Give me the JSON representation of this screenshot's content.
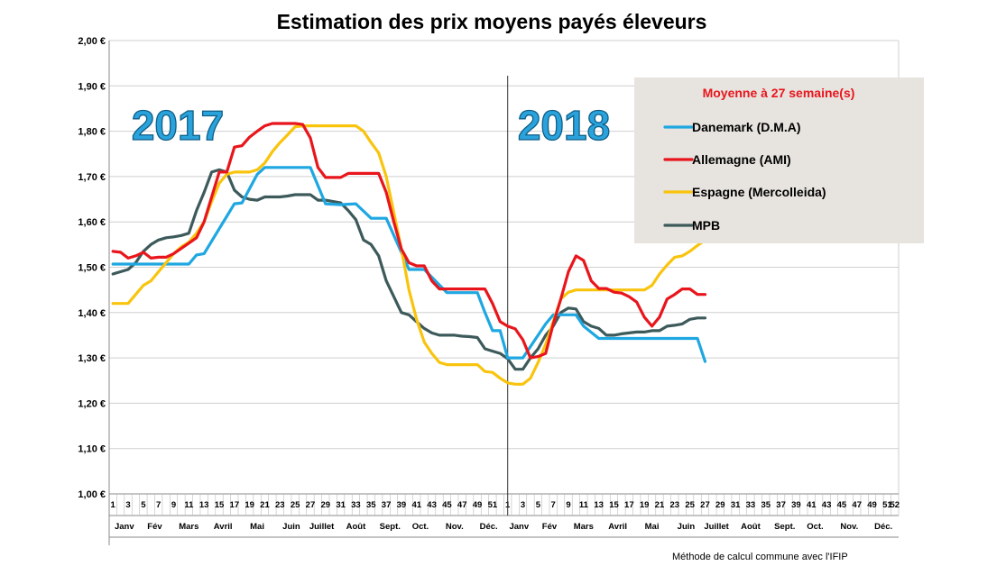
{
  "chart_data": {
    "type": "line",
    "title": "Estimation des prix moyens payés éleveurs",
    "ylim": [
      1.0,
      2.0
    ],
    "y_tick_labels": [
      "1,00 €",
      "1,10 €",
      "1,20 €",
      "1,30 €",
      "1,40 €",
      "1,50 €",
      "1,60 €",
      "1,70 €",
      "1,80 €",
      "1,90 €",
      "2,00 €"
    ],
    "y_tick_values": [
      1.0,
      1.1,
      1.2,
      1.3,
      1.4,
      1.5,
      1.6,
      1.7,
      1.8,
      1.9,
      2.0
    ],
    "grid": true,
    "x_ticks_2017": [
      "1",
      "3",
      "5",
      "7",
      "9",
      "11",
      "13",
      "15",
      "17",
      "19",
      "21",
      "23",
      "25",
      "27",
      "29",
      "31",
      "33",
      "35",
      "37",
      "39",
      "41",
      "43",
      "45",
      "47",
      "49",
      "51"
    ],
    "x_ticks_2018": [
      "1",
      "3",
      "5",
      "7",
      "9",
      "11",
      "13",
      "15",
      "17",
      "19",
      "21",
      "23",
      "25",
      "27",
      "29",
      "31",
      "33",
      "35",
      "37",
      "39",
      "41",
      "43",
      "45",
      "47",
      "49",
      "51"
    ],
    "x_tick_last": "52",
    "months": [
      {
        "label": "Janv",
        "week": 2.5
      },
      {
        "label": "Fév",
        "week": 6.5
      },
      {
        "label": "Mars",
        "week": 11
      },
      {
        "label": "Avril",
        "week": 15.5
      },
      {
        "label": "Mai",
        "week": 20
      },
      {
        "label": "Juin",
        "week": 24.5
      },
      {
        "label": "Juillet",
        "week": 28.5
      },
      {
        "label": "Août",
        "week": 33
      },
      {
        "label": "Sept.",
        "week": 37.5
      },
      {
        "label": "Oct.",
        "week": 41.5
      },
      {
        "label": "Nov.",
        "week": 46
      },
      {
        "label": "Déc.",
        "week": 50.5
      },
      {
        "label": "Janv",
        "week": 54.5
      },
      {
        "label": "Fév",
        "week": 58.5
      },
      {
        "label": "Mars",
        "week": 63
      },
      {
        "label": "Avril",
        "week": 67.5
      },
      {
        "label": "Mai",
        "week": 72
      },
      {
        "label": "Juin",
        "week": 76.5
      },
      {
        "label": "Juillet",
        "week": 80.5
      },
      {
        "label": "Août",
        "week": 85
      },
      {
        "label": "Sept.",
        "week": 89.5
      },
      {
        "label": "Oct.",
        "week": 93.5
      },
      {
        "label": "Nov.",
        "week": 98
      },
      {
        "label": "Déc.",
        "week": 102.5
      }
    ],
    "year_divider_week": 52.5,
    "year_labels": [
      "2017",
      "2018"
    ],
    "legend_title": "Moyenne à  27 semaine(s)",
    "series": [
      {
        "name": "Danemark (D.M.A)",
        "color": "#1ea7e1",
        "x": [
          1,
          5,
          11,
          12,
          13,
          17,
          18,
          20,
          21,
          27,
          29,
          31,
          33,
          35,
          37,
          40,
          42,
          45,
          49,
          50,
          51,
          52,
          53,
          54,
          55,
          58,
          59,
          60,
          61,
          62,
          63,
          65,
          78,
          79
        ],
        "y": [
          1.507,
          1.507,
          1.507,
          1.527,
          1.53,
          1.64,
          1.642,
          1.705,
          1.72,
          1.72,
          1.64,
          1.638,
          1.64,
          1.608,
          1.608,
          1.495,
          1.495,
          1.444,
          1.444,
          1.4,
          1.36,
          1.36,
          1.3,
          1.3,
          1.3,
          1.375,
          1.395,
          1.395,
          1.395,
          1.395,
          1.37,
          1.343,
          1.343,
          1.292
        ]
      },
      {
        "name": "Allemagne (AMI)",
        "color": "#e8161c",
        "x": [
          1,
          2,
          3,
          4,
          5,
          6,
          7,
          8,
          9,
          11,
          12,
          13,
          15,
          16,
          17,
          18,
          19,
          20,
          21,
          22,
          23,
          24,
          25,
          26,
          27,
          28,
          29,
          30,
          31,
          32,
          33,
          34,
          35,
          36,
          37,
          38,
          39,
          40,
          41,
          42,
          43,
          44,
          45,
          46,
          47,
          48,
          49,
          50,
          51,
          52,
          53,
          54,
          55,
          56,
          57,
          58,
          59,
          60,
          61,
          62,
          63,
          64,
          65,
          66,
          67,
          68,
          69,
          70,
          71,
          72,
          73,
          74,
          75,
          76,
          77,
          78,
          79
        ],
        "y": [
          1.535,
          1.533,
          1.52,
          1.525,
          1.533,
          1.52,
          1.522,
          1.522,
          1.53,
          1.553,
          1.565,
          1.6,
          1.71,
          1.71,
          1.765,
          1.768,
          1.787,
          1.8,
          1.812,
          1.817,
          1.817,
          1.817,
          1.817,
          1.815,
          1.785,
          1.72,
          1.698,
          1.698,
          1.698,
          1.707,
          1.707,
          1.707,
          1.707,
          1.707,
          1.665,
          1.6,
          1.54,
          1.51,
          1.503,
          1.503,
          1.47,
          1.452,
          1.452,
          1.452,
          1.452,
          1.452,
          1.452,
          1.452,
          1.42,
          1.38,
          1.37,
          1.364,
          1.34,
          1.3,
          1.303,
          1.31,
          1.375,
          1.43,
          1.49,
          1.525,
          1.515,
          1.47,
          1.453,
          1.453,
          1.445,
          1.443,
          1.435,
          1.423,
          1.39,
          1.37,
          1.39,
          1.43,
          1.44,
          1.452,
          1.452,
          1.44,
          1.44
        ]
      },
      {
        "name": "Espagne (Mercolleida)",
        "color": "#f9c40e",
        "x": [
          1,
          3,
          4,
          5,
          6,
          7,
          8,
          9,
          10,
          11,
          12,
          13,
          14,
          15,
          16,
          17,
          18,
          19,
          20,
          21,
          22,
          23,
          24,
          25,
          26,
          27,
          28,
          29,
          30,
          31,
          32,
          33,
          34,
          35,
          36,
          37,
          38,
          39,
          40,
          41,
          42,
          43,
          44,
          45,
          46,
          47,
          48,
          49,
          50,
          51,
          52,
          53,
          54,
          55,
          56,
          57,
          58,
          59,
          60,
          61,
          62,
          63,
          64,
          65,
          66,
          67,
          68,
          69,
          70,
          71,
          72,
          73,
          74,
          75,
          76,
          77,
          78,
          79
        ],
        "y": [
          1.42,
          1.42,
          1.44,
          1.46,
          1.47,
          1.49,
          1.51,
          1.53,
          1.545,
          1.555,
          1.575,
          1.6,
          1.645,
          1.685,
          1.705,
          1.71,
          1.71,
          1.71,
          1.715,
          1.73,
          1.755,
          1.775,
          1.792,
          1.81,
          1.812,
          1.812,
          1.812,
          1.812,
          1.812,
          1.812,
          1.812,
          1.812,
          1.8,
          1.775,
          1.752,
          1.7,
          1.62,
          1.54,
          1.45,
          1.385,
          1.335,
          1.31,
          1.29,
          1.285,
          1.285,
          1.285,
          1.285,
          1.285,
          1.27,
          1.268,
          1.255,
          1.245,
          1.242,
          1.242,
          1.255,
          1.29,
          1.33,
          1.38,
          1.43,
          1.445,
          1.45,
          1.45,
          1.45,
          1.45,
          1.45,
          1.45,
          1.45,
          1.45,
          1.45,
          1.45,
          1.46,
          1.485,
          1.505,
          1.522,
          1.525,
          1.535,
          1.548,
          1.56
        ]
      },
      {
        "name": "MPB",
        "color": "#3d5a5b",
        "x": [
          1,
          2,
          3,
          4,
          5,
          6,
          7,
          8,
          9,
          10,
          11,
          12,
          13,
          14,
          15,
          16,
          17,
          18,
          19,
          20,
          21,
          22,
          23,
          24,
          25,
          26,
          27,
          28,
          29,
          30,
          31,
          32,
          33,
          34,
          35,
          36,
          37,
          38,
          39,
          40,
          41,
          42,
          43,
          44,
          45,
          46,
          47,
          48,
          49,
          50,
          51,
          52,
          53,
          54,
          55,
          56,
          57,
          58,
          59,
          60,
          61,
          62,
          63,
          64,
          65,
          66,
          67,
          68,
          69,
          70,
          71,
          72,
          73,
          74,
          75,
          76,
          77,
          78,
          79
        ],
        "y": [
          1.485,
          1.49,
          1.495,
          1.51,
          1.535,
          1.55,
          1.56,
          1.565,
          1.567,
          1.57,
          1.575,
          1.625,
          1.665,
          1.71,
          1.715,
          1.71,
          1.67,
          1.655,
          1.65,
          1.648,
          1.655,
          1.655,
          1.655,
          1.657,
          1.66,
          1.66,
          1.66,
          1.648,
          1.648,
          1.645,
          1.642,
          1.625,
          1.605,
          1.56,
          1.55,
          1.525,
          1.47,
          1.435,
          1.4,
          1.395,
          1.38,
          1.365,
          1.355,
          1.35,
          1.35,
          1.35,
          1.348,
          1.347,
          1.345,
          1.32,
          1.315,
          1.31,
          1.298,
          1.275,
          1.275,
          1.3,
          1.32,
          1.35,
          1.37,
          1.4,
          1.41,
          1.408,
          1.38,
          1.37,
          1.365,
          1.35,
          1.35,
          1.353,
          1.355,
          1.357,
          1.357,
          1.36,
          1.36,
          1.37,
          1.372,
          1.375,
          1.385,
          1.388,
          1.388
        ]
      }
    ],
    "footnote": "Méthode de calcul commune avec l'IFIP"
  }
}
